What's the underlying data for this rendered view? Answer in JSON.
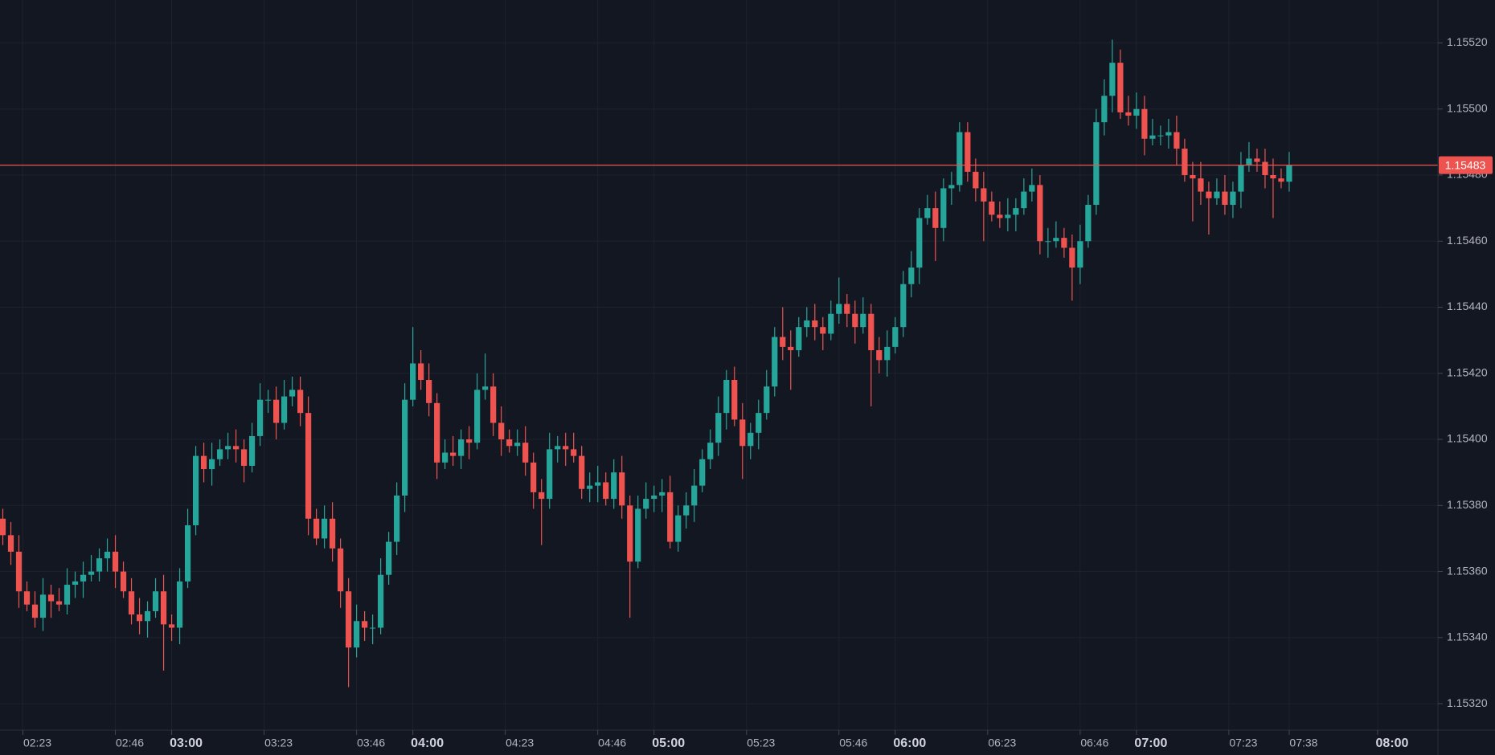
{
  "chart_data": {
    "type": "candlestick",
    "up_color": "#26a69a",
    "down_color": "#ef5350",
    "grid": true,
    "price_line": 1.15483,
    "price_line_color": "#ef5350",
    "xlim": [
      137.3,
      495
    ],
    "ylim": [
      1.15312,
      1.15533
    ],
    "xticks": [
      {
        "value": 143,
        "label": "02:23"
      },
      {
        "value": 166,
        "label": "02:46"
      },
      {
        "value": 180,
        "label": "03:00"
      },
      {
        "value": 203,
        "label": "03:23"
      },
      {
        "value": 226,
        "label": "03:46"
      },
      {
        "value": 240,
        "label": "04:00"
      },
      {
        "value": 263,
        "label": "04:23"
      },
      {
        "value": 286,
        "label": "04:46"
      },
      {
        "value": 300,
        "label": "05:00"
      },
      {
        "value": 323,
        "label": "05:23"
      },
      {
        "value": 346,
        "label": "05:46"
      },
      {
        "value": 360,
        "label": "06:00"
      },
      {
        "value": 383,
        "label": "06:23"
      },
      {
        "value": 406,
        "label": "06:46"
      },
      {
        "value": 420,
        "label": "07:00"
      },
      {
        "value": 443,
        "label": "07:23"
      },
      {
        "value": 458,
        "label": "07:38"
      },
      {
        "value": 480,
        "label": "08:00"
      }
    ],
    "yticks": [
      {
        "value": 1.1532,
        "label": "1.15320"
      },
      {
        "value": 1.1534,
        "label": "1.15340"
      },
      {
        "value": 1.1536,
        "label": "1.15360"
      },
      {
        "value": 1.1538,
        "label": "1.15380"
      },
      {
        "value": 1.154,
        "label": "1.15400"
      },
      {
        "value": 1.1542,
        "label": "1.15420"
      },
      {
        "value": 1.1544,
        "label": "1.15440"
      },
      {
        "value": 1.1546,
        "label": "1.15460"
      },
      {
        "value": 1.1548,
        "label": "1.15480"
      },
      {
        "value": 1.155,
        "label": "1.15500"
      },
      {
        "value": 1.1552,
        "label": "1.15520"
      }
    ],
    "x": [
      138,
      140,
      142,
      144,
      146,
      148,
      150,
      152,
      154,
      156,
      158,
      160,
      162,
      164,
      166,
      168,
      170,
      172,
      174,
      176,
      178,
      180,
      182,
      184,
      186,
      188,
      190,
      192,
      194,
      196,
      198,
      200,
      202,
      204,
      206,
      208,
      210,
      212,
      214,
      216,
      218,
      220,
      222,
      224,
      226,
      228,
      230,
      232,
      234,
      236,
      238,
      240,
      242,
      244,
      246,
      248,
      250,
      252,
      254,
      256,
      258,
      260,
      262,
      264,
      266,
      268,
      270,
      272,
      274,
      276,
      278,
      280,
      282,
      284,
      286,
      288,
      290,
      292,
      294,
      296,
      298,
      300,
      302,
      304,
      306,
      308,
      310,
      312,
      314,
      316,
      318,
      320,
      322,
      324,
      326,
      328,
      330,
      332,
      334,
      336,
      338,
      340,
      342,
      344,
      346,
      348,
      350,
      352,
      354,
      356,
      358,
      360,
      362,
      364,
      366,
      368,
      370,
      372,
      374,
      376,
      378,
      380,
      382,
      384,
      386,
      388,
      390,
      392,
      394,
      396,
      398,
      400,
      402,
      404,
      406,
      408,
      410,
      412,
      414,
      416,
      418,
      420,
      422,
      424,
      426,
      428,
      430,
      432,
      434,
      436,
      438,
      440,
      442,
      444,
      446,
      448,
      450,
      452,
      454,
      456,
      458
    ],
    "open": [
      1.15376,
      1.15371,
      1.15366,
      1.15354,
      1.1535,
      1.15346,
      1.15353,
      1.15351,
      1.1535,
      1.15356,
      1.15357,
      1.15359,
      1.1536,
      1.15364,
      1.15366,
      1.1536,
      1.15354,
      1.15347,
      1.15345,
      1.15348,
      1.15354,
      1.15344,
      1.15343,
      1.15357,
      1.15374,
      1.15395,
      1.15391,
      1.15394,
      1.15397,
      1.15398,
      1.15397,
      1.15392,
      1.15401,
      1.15412,
      1.15412,
      1.15405,
      1.15413,
      1.15415,
      1.15408,
      1.15376,
      1.1537,
      1.15376,
      1.15367,
      1.15354,
      1.15337,
      1.15345,
      1.15343,
      1.15343,
      1.15359,
      1.15369,
      1.15383,
      1.15412,
      1.15423,
      1.15418,
      1.15411,
      1.15393,
      1.15396,
      1.15395,
      1.154,
      1.15399,
      1.15415,
      1.15416,
      1.15405,
      1.154,
      1.15398,
      1.15399,
      1.15393,
      1.15384,
      1.15382,
      1.15397,
      1.15398,
      1.15397,
      1.15395,
      1.15385,
      1.15386,
      1.15387,
      1.15382,
      1.1539,
      1.1538,
      1.15363,
      1.15379,
      1.15382,
      1.15383,
      1.15384,
      1.15369,
      1.15377,
      1.1538,
      1.15386,
      1.15394,
      1.15399,
      1.15408,
      1.15418,
      1.15406,
      1.15398,
      1.15402,
      1.15408,
      1.15416,
      1.15431,
      1.15428,
      1.15427,
      1.15434,
      1.15436,
      1.15434,
      1.15432,
      1.15438,
      1.15441,
      1.15438,
      1.15434,
      1.15438,
      1.15427,
      1.15424,
      1.15428,
      1.15434,
      1.15447,
      1.15452,
      1.15467,
      1.1547,
      1.15464,
      1.15476,
      1.15477,
      1.15493,
      1.15481,
      1.15476,
      1.15472,
      1.15468,
      1.15467,
      1.15468,
      1.1547,
      1.15475,
      1.15477,
      1.1546,
      1.1546,
      1.15461,
      1.15458,
      1.15452,
      1.1546,
      1.15471,
      1.15496,
      1.15504,
      1.15514,
      1.15499,
      1.15498,
      1.155,
      1.15491,
      1.15492,
      1.15492,
      1.15493,
      1.15488,
      1.1548,
      1.15479,
      1.15475,
      1.15473,
      1.15475,
      1.15471,
      1.15475,
      1.15483,
      1.15485,
      1.15484,
      1.1548,
      1.15479,
      1.15478
    ],
    "high": [
      1.15379,
      1.15375,
      1.15371,
      1.15357,
      1.15354,
      1.15358,
      1.15356,
      1.15355,
      1.15361,
      1.1536,
      1.15363,
      1.15365,
      1.15367,
      1.1537,
      1.15371,
      1.15363,
      1.15358,
      1.15352,
      1.15351,
      1.15358,
      1.15359,
      1.15347,
      1.15361,
      1.15379,
      1.15398,
      1.15399,
      1.15399,
      1.154,
      1.15402,
      1.15403,
      1.154,
      1.15405,
      1.15417,
      1.15415,
      1.15416,
      1.15418,
      1.15419,
      1.15419,
      1.15413,
      1.15379,
      1.1538,
      1.15381,
      1.1537,
      1.15358,
      1.1535,
      1.15348,
      1.15347,
      1.15364,
      1.15372,
      1.15387,
      1.15417,
      1.15434,
      1.15427,
      1.15423,
      1.15414,
      1.154,
      1.15401,
      1.15403,
      1.15404,
      1.1542,
      1.15426,
      1.1542,
      1.1541,
      1.15403,
      1.15403,
      1.15404,
      1.15396,
      1.15388,
      1.15402,
      1.15401,
      1.15402,
      1.15402,
      1.15398,
      1.1539,
      1.15392,
      1.1539,
      1.15394,
      1.15395,
      1.15383,
      1.15383,
      1.15387,
      1.15386,
      1.15388,
      1.15389,
      1.1538,
      1.15384,
      1.15391,
      1.15397,
      1.15403,
      1.15413,
      1.15421,
      1.15422,
      1.15411,
      1.15405,
      1.15412,
      1.15421,
      1.15434,
      1.1544,
      1.15433,
      1.15437,
      1.1544,
      1.15441,
      1.15437,
      1.15442,
      1.15449,
      1.15444,
      1.15442,
      1.15443,
      1.15441,
      1.15431,
      1.15433,
      1.15437,
      1.15451,
      1.15457,
      1.1547,
      1.15474,
      1.15475,
      1.15479,
      1.15481,
      1.15496,
      1.15496,
      1.15485,
      1.15481,
      1.15475,
      1.15472,
      1.15473,
      1.15473,
      1.15479,
      1.15482,
      1.1548,
      1.15464,
      1.15466,
      1.15464,
      1.15462,
      1.15465,
      1.15474,
      1.155,
      1.15509,
      1.15521,
      1.15518,
      1.15504,
      1.15505,
      1.15504,
      1.15497,
      1.15495,
      1.15497,
      1.15498,
      1.15491,
      1.15484,
      1.15484,
      1.15478,
      1.15479,
      1.1548,
      1.15478,
      1.15487,
      1.1549,
      1.15488,
      1.15488,
      1.15485,
      1.15482,
      1.15487
    ],
    "low": [
      1.15368,
      1.15362,
      1.15349,
      1.15348,
      1.15343,
      1.15342,
      1.15346,
      1.15348,
      1.15347,
      1.15352,
      1.15352,
      1.15357,
      1.15357,
      1.1536,
      1.15355,
      1.15352,
      1.15344,
      1.15341,
      1.1534,
      1.15346,
      1.1533,
      1.15339,
      1.15338,
      1.15355,
      1.15371,
      1.15387,
      1.15386,
      1.15392,
      1.15394,
      1.15393,
      1.15387,
      1.1539,
      1.15398,
      1.15408,
      1.154,
      1.15403,
      1.1541,
      1.15404,
      1.15371,
      1.15368,
      1.15367,
      1.15363,
      1.15349,
      1.15325,
      1.15334,
      1.15339,
      1.15338,
      1.15341,
      1.15356,
      1.15365,
      1.15378,
      1.1541,
      1.15415,
      1.15407,
      1.15388,
      1.15391,
      1.15392,
      1.15391,
      1.15394,
      1.15397,
      1.15412,
      1.15401,
      1.15395,
      1.15396,
      1.15395,
      1.15389,
      1.15379,
      1.15368,
      1.15379,
      1.15393,
      1.15392,
      1.15393,
      1.15382,
      1.15381,
      1.15381,
      1.1538,
      1.15379,
      1.15376,
      1.15346,
      1.15361,
      1.15376,
      1.15378,
      1.15378,
      1.15367,
      1.15366,
      1.15373,
      1.15375,
      1.15384,
      1.15391,
      1.15395,
      1.15403,
      1.15404,
      1.15388,
      1.15394,
      1.15397,
      1.15406,
      1.15413,
      1.15424,
      1.15415,
      1.15425,
      1.15431,
      1.1543,
      1.15427,
      1.1543,
      1.15435,
      1.15434,
      1.15429,
      1.15432,
      1.1541,
      1.1542,
      1.15419,
      1.15426,
      1.15431,
      1.15443,
      1.15447,
      1.15465,
      1.15454,
      1.1546,
      1.15471,
      1.15475,
      1.15478,
      1.15472,
      1.1546,
      1.15466,
      1.15464,
      1.15463,
      1.15463,
      1.15468,
      1.15472,
      1.15456,
      1.15455,
      1.15458,
      1.15455,
      1.15442,
      1.15447,
      1.15458,
      1.15468,
      1.15492,
      1.15499,
      1.15497,
      1.15495,
      1.15494,
      1.15486,
      1.15489,
      1.15489,
      1.15488,
      1.15483,
      1.15478,
      1.15466,
      1.15471,
      1.15462,
      1.15471,
      1.15468,
      1.15467,
      1.1547,
      1.15481,
      1.15481,
      1.15476,
      1.15467,
      1.15476,
      1.15475
    ],
    "close": [
      1.15371,
      1.15366,
      1.15354,
      1.1535,
      1.15346,
      1.15353,
      1.15351,
      1.1535,
      1.15356,
      1.15357,
      1.15359,
      1.1536,
      1.15364,
      1.15366,
      1.1536,
      1.15354,
      1.15347,
      1.15345,
      1.15348,
      1.15354,
      1.15344,
      1.15343,
      1.15357,
      1.15374,
      1.15395,
      1.15391,
      1.15394,
      1.15397,
      1.15398,
      1.15397,
      1.15392,
      1.15401,
      1.15412,
      1.15412,
      1.15405,
      1.15413,
      1.15415,
      1.15408,
      1.15376,
      1.1537,
      1.15376,
      1.15367,
      1.15354,
      1.15337,
      1.15345,
      1.15343,
      1.15343,
      1.15359,
      1.15369,
      1.15383,
      1.15412,
      1.15423,
      1.15418,
      1.15411,
      1.15393,
      1.15396,
      1.15395,
      1.154,
      1.15399,
      1.15415,
      1.15416,
      1.15405,
      1.154,
      1.15398,
      1.15399,
      1.15393,
      1.15384,
      1.15382,
      1.15397,
      1.15398,
      1.15397,
      1.15395,
      1.15385,
      1.15386,
      1.15387,
      1.15382,
      1.1539,
      1.1538,
      1.15363,
      1.15379,
      1.15382,
      1.15383,
      1.15384,
      1.15369,
      1.15377,
      1.1538,
      1.15386,
      1.15394,
      1.15399,
      1.15408,
      1.15418,
      1.15406,
      1.15398,
      1.15402,
      1.15408,
      1.15416,
      1.15431,
      1.15428,
      1.15427,
      1.15434,
      1.15436,
      1.15434,
      1.15432,
      1.15438,
      1.15441,
      1.15438,
      1.15434,
      1.15438,
      1.15427,
      1.15424,
      1.15428,
      1.15434,
      1.15447,
      1.15452,
      1.15467,
      1.1547,
      1.15464,
      1.15476,
      1.15477,
      1.15493,
      1.15481,
      1.15476,
      1.15472,
      1.15468,
      1.15467,
      1.15468,
      1.1547,
      1.15475,
      1.15477,
      1.1546,
      1.1546,
      1.15461,
      1.15458,
      1.15452,
      1.1546,
      1.15471,
      1.15496,
      1.15504,
      1.15514,
      1.15499,
      1.15498,
      1.155,
      1.15491,
      1.15492,
      1.15492,
      1.15493,
      1.15488,
      1.1548,
      1.15479,
      1.15475,
      1.15473,
      1.15475,
      1.15471,
      1.15475,
      1.15483,
      1.15485,
      1.15484,
      1.1548,
      1.15479,
      1.15478,
      1.15483
    ]
  }
}
